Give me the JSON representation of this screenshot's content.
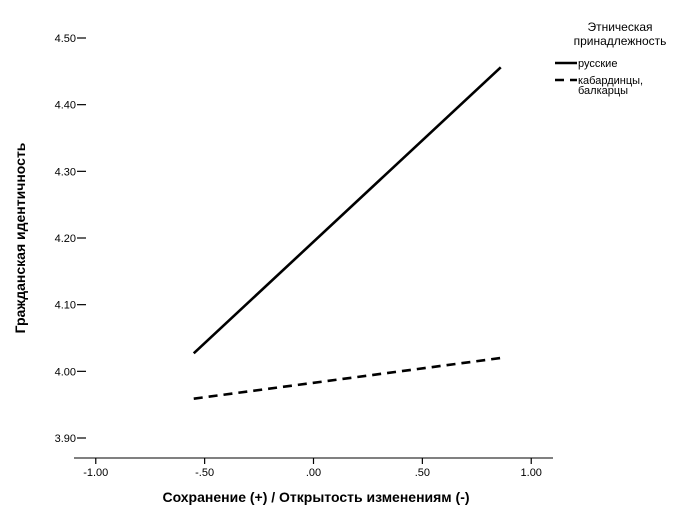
{
  "chart_data": {
    "type": "line",
    "xlabel": "Сохранение (+) / Открытость изменениям (-)",
    "ylabel": "Гражданская идентичность",
    "xlim": [
      -1.1,
      1.1
    ],
    "ylim": [
      3.87,
      4.53
    ],
    "x_ticks": [
      -1.0,
      -0.5,
      0.0,
      0.5,
      1.0
    ],
    "x_tick_labels": [
      "-1.00",
      "-.50",
      ".00",
      ".50",
      "1.00"
    ],
    "y_ticks": [
      3.9,
      4.0,
      4.1,
      4.2,
      4.3,
      4.4,
      4.5
    ],
    "y_tick_labels": [
      "3.90",
      "4.00",
      "4.10",
      "4.20",
      "4.30",
      "4.40",
      "4.50"
    ],
    "grid": false,
    "legend": {
      "title_lines": [
        "Этническая",
        "принадлежность"
      ],
      "placement": "top-right"
    },
    "series": [
      {
        "label_lines": [
          "русские"
        ],
        "style": "solid",
        "color": "#000000",
        "points": [
          {
            "x": -0.55,
            "y": 4.027
          },
          {
            "x": 0.86,
            "y": 4.456
          }
        ]
      },
      {
        "label_lines": [
          "кабардинцы,",
          "балкарцы"
        ],
        "style": "dashed",
        "color": "#000000",
        "points": [
          {
            "x": -0.55,
            "y": 3.959
          },
          {
            "x": 0.86,
            "y": 4.02
          }
        ]
      }
    ]
  }
}
